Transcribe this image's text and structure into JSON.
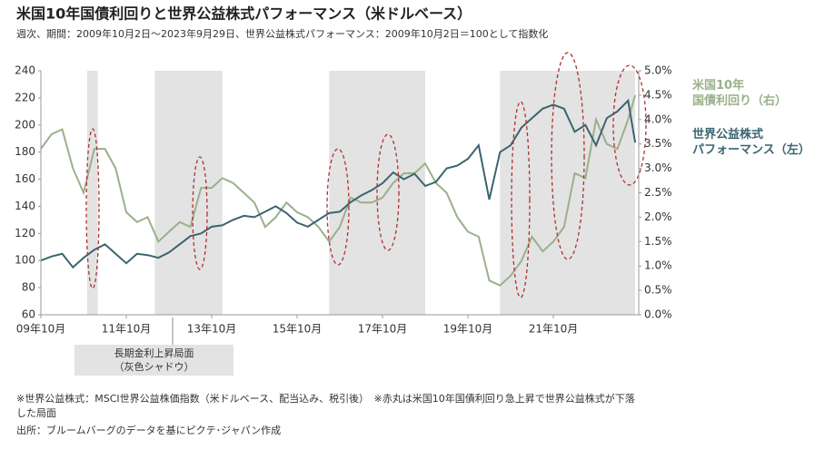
{
  "chart_data": {
    "type": "line",
    "title": "米国10年国債利回りと世界公益株式パフォーマンス（米ドルベース）",
    "subtitle": "週次、期間：2009年10月2日～2023年9月29日、世界公益株式パフォーマンス：2009年10月2日＝100として指数化",
    "x": [
      "2009-10",
      "2010-01",
      "2010-04",
      "2010-07",
      "2010-10",
      "2011-01",
      "2011-04",
      "2011-07",
      "2011-10",
      "2012-01",
      "2012-04",
      "2012-07",
      "2012-10",
      "2013-01",
      "2013-04",
      "2013-07",
      "2013-10",
      "2014-01",
      "2014-04",
      "2014-07",
      "2014-10",
      "2015-01",
      "2015-04",
      "2015-07",
      "2015-10",
      "2016-01",
      "2016-04",
      "2016-07",
      "2016-10",
      "2017-01",
      "2017-04",
      "2017-07",
      "2017-10",
      "2018-01",
      "2018-04",
      "2018-07",
      "2018-10",
      "2019-01",
      "2019-04",
      "2019-07",
      "2019-10",
      "2020-01",
      "2020-04",
      "2020-07",
      "2020-10",
      "2021-01",
      "2021-04",
      "2021-07",
      "2021-10",
      "2022-01",
      "2022-04",
      "2022-07",
      "2022-10",
      "2023-01",
      "2023-04",
      "2023-07",
      "2023-09"
    ],
    "series": [
      {
        "name": "米国10年\n国債利回り（右）",
        "color": "#9bb08a",
        "axis": "y2",
        "values": [
          3.4,
          3.7,
          3.8,
          3.0,
          2.5,
          3.4,
          3.4,
          3.0,
          2.1,
          1.9,
          2.0,
          1.5,
          1.7,
          1.9,
          1.8,
          2.6,
          2.6,
          2.8,
          2.7,
          2.5,
          2.3,
          1.8,
          2.0,
          2.3,
          2.1,
          2.0,
          1.8,
          1.5,
          1.8,
          2.4,
          2.3,
          2.3,
          2.4,
          2.7,
          2.9,
          2.9,
          3.1,
          2.7,
          2.5,
          2.0,
          1.7,
          1.6,
          0.7,
          0.6,
          0.8,
          1.1,
          1.6,
          1.3,
          1.5,
          1.8,
          2.9,
          2.8,
          4.0,
          3.5,
          3.4,
          4.0,
          4.5
        ]
      },
      {
        "name": "世界公益株式\nパフォーマンス（左）",
        "color": "#3b6470",
        "values": [
          100,
          103,
          105,
          95,
          102,
          108,
          112,
          105,
          98,
          105,
          104,
          102,
          106,
          112,
          118,
          120,
          125,
          126,
          130,
          133,
          132,
          136,
          140,
          135,
          128,
          125,
          130,
          135,
          136,
          143,
          148,
          152,
          157,
          165,
          160,
          164,
          155,
          158,
          168,
          170,
          175,
          185,
          145,
          180,
          185,
          198,
          205,
          212,
          215,
          212,
          195,
          200,
          185,
          205,
          210,
          218,
          187
        ]
      }
    ],
    "ylim": [
      60,
      240
    ],
    "yticks": [
      60,
      80,
      100,
      120,
      140,
      160,
      180,
      200,
      220,
      240
    ],
    "y2lim": [
      0,
      5
    ],
    "y2ticks": [
      {
        "value": 0,
        "label": "0.0%"
      },
      {
        "value": 0.5,
        "label": "0.5%"
      },
      {
        "value": 1,
        "label": "1.0%"
      },
      {
        "value": 1.5,
        "label": "1.5%"
      },
      {
        "value": 2,
        "label": "2.0%"
      },
      {
        "value": 2.5,
        "label": "2.5%"
      },
      {
        "value": 3,
        "label": "3.0%"
      },
      {
        "value": 3.5,
        "label": "3.5%"
      },
      {
        "value": 4,
        "label": "4.0%"
      },
      {
        "value": 4.5,
        "label": "4.5%"
      },
      {
        "value": 5,
        "label": "5.0%"
      }
    ],
    "xlim": [
      "2009-10",
      "2023-10"
    ],
    "xticks": [
      {
        "value": "2009-10",
        "label": "09年10月"
      },
      {
        "value": "2011-10",
        "label": "11年10月"
      },
      {
        "value": "2013-10",
        "label": "13年10月"
      },
      {
        "value": "2015-10",
        "label": "15年10月"
      },
      {
        "value": "2017-10",
        "label": "17年10月"
      },
      {
        "value": "2019-10",
        "label": "19年10月"
      },
      {
        "value": "2021-10",
        "label": "21年10月"
      }
    ],
    "shaded_periods": [
      {
        "start": "2010-11",
        "end": "2011-02"
      },
      {
        "start": "2012-06",
        "end": "2014-01"
      },
      {
        "start": "2016-07",
        "end": "2018-10"
      },
      {
        "start": "2020-07",
        "end": "2023-09"
      }
    ],
    "shade_annotation": "長期金利上昇局面\n（灰色シャドウ）",
    "footnote": "※世界公益株式：MSCI世界公益株価指数（米ドルベース、配当込み、税引後）　※赤丸は米国10年国債利回り急上昇で世界公益株式が下落\nした局面",
    "source": "出所：ブルームバーグのデータを基にピクテ･ジャパン作成"
  }
}
